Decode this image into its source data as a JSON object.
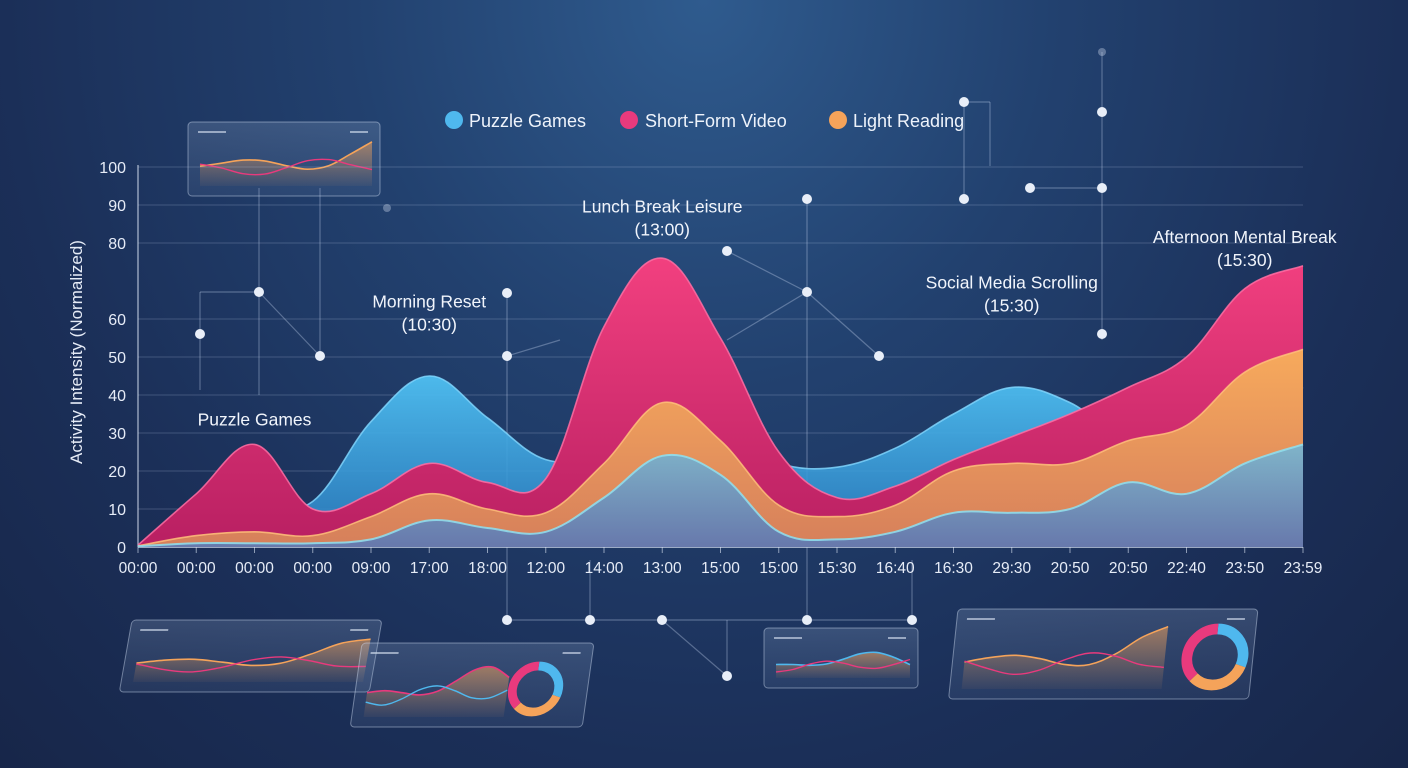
{
  "chart_data": {
    "type": "area",
    "title": "",
    "xlabel": "",
    "ylabel": "Activity Intensity (Normalized)",
    "ylim": [
      0,
      100
    ],
    "yticks": [
      0,
      10,
      20,
      30,
      40,
      50,
      60,
      80,
      90,
      100
    ],
    "x_tick_labels": [
      "00:00",
      "00:00",
      "00:00",
      "00:00",
      "09:00",
      "17:00",
      "18:00",
      "12:00",
      "14:00",
      "13:00",
      "15:00",
      "15:00",
      "15:30",
      "16:40",
      "16:30",
      "29:30",
      "20:50",
      "20:50",
      "22:40",
      "23:50",
      "23:59"
    ],
    "grid": true,
    "legend_position": "top",
    "series": [
      {
        "name": "Puzzle Games",
        "color": "#4fb8ee",
        "values": [
          0.5,
          3,
          10,
          12,
          33,
          45,
          34,
          23,
          25,
          38,
          30,
          22,
          21,
          26,
          35,
          42,
          38,
          28,
          31,
          36,
          42
        ]
      },
      {
        "name": "Short-Form Video",
        "color": "#e83a7d",
        "values": [
          0.5,
          14,
          27,
          10,
          14,
          22,
          17,
          18,
          58,
          76,
          55,
          25,
          13,
          16,
          23,
          29,
          35,
          42,
          50,
          68,
          74
        ]
      },
      {
        "name": "Light Reading",
        "color": "#f5a35a",
        "values": [
          0.3,
          3,
          4,
          3,
          8,
          14,
          10,
          9,
          22,
          38,
          28,
          11,
          8,
          11,
          20,
          22,
          22,
          28,
          32,
          46,
          52
        ]
      },
      {
        "name": "",
        "color": "#6fc6df",
        "values": [
          0.2,
          1,
          1,
          1,
          2,
          7,
          5,
          4,
          13,
          24,
          19,
          4,
          2,
          4,
          9,
          9,
          10,
          17,
          14,
          22,
          27
        ]
      }
    ],
    "annotations": [
      {
        "text": "Puzzle Games",
        "x_index": 2,
        "y": 32
      },
      {
        "text": "Morning Reset",
        "x_index": 5,
        "y": 63,
        "sub": "(10:30)"
      },
      {
        "text": "Lunch Break Leisure",
        "x_index": 9,
        "y": 88,
        "sub": "(13:00)"
      },
      {
        "text": "Social Media Scrolling",
        "x_index": 15,
        "y": 68,
        "sub": "(15:30)"
      },
      {
        "text": "Afternoon Mental Break",
        "x_index": 19,
        "y": 80,
        "sub": "(15:30)"
      }
    ]
  },
  "legend": {
    "items": [
      {
        "label": "Puzzle Games",
        "color": "#4fb8ee"
      },
      {
        "label": "Short-Form Video",
        "color": "#e83a7d"
      },
      {
        "label": "Light Reading",
        "color": "#f5a35a"
      }
    ]
  }
}
